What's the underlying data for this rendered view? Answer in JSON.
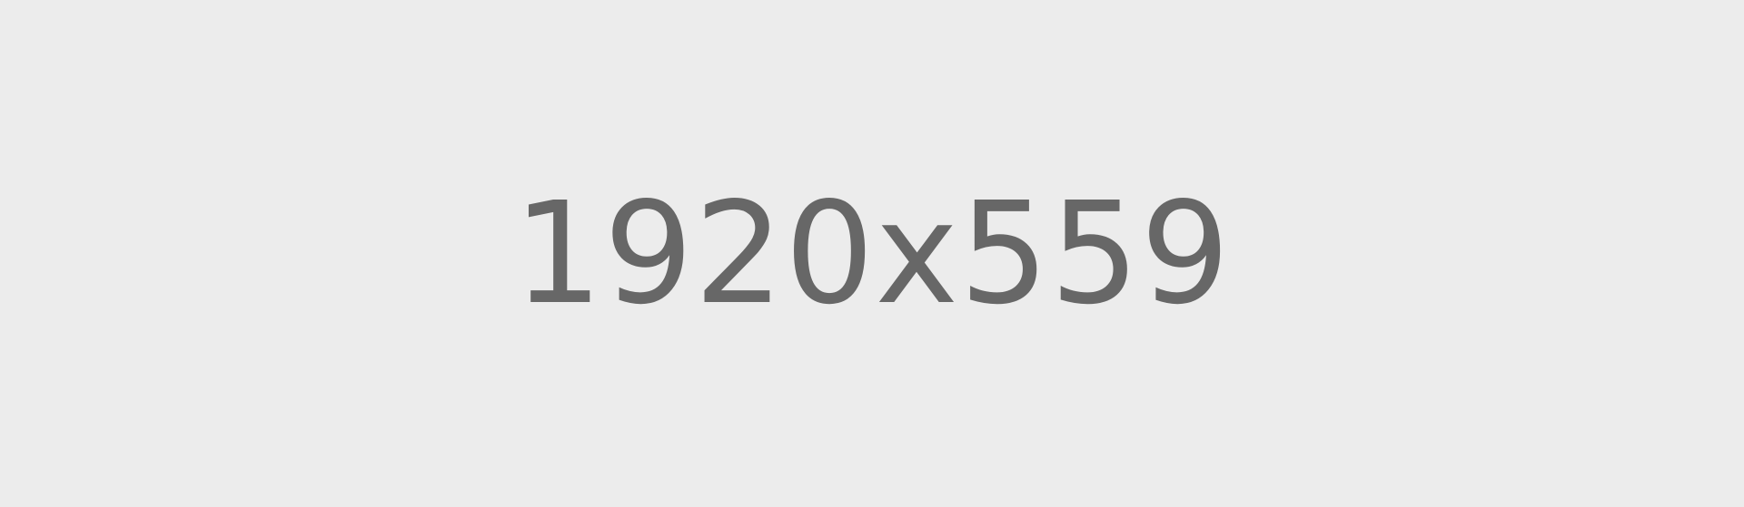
{
  "placeholder": {
    "label": "1920x559",
    "background_color": "#ececec",
    "text_color": "#676767"
  }
}
